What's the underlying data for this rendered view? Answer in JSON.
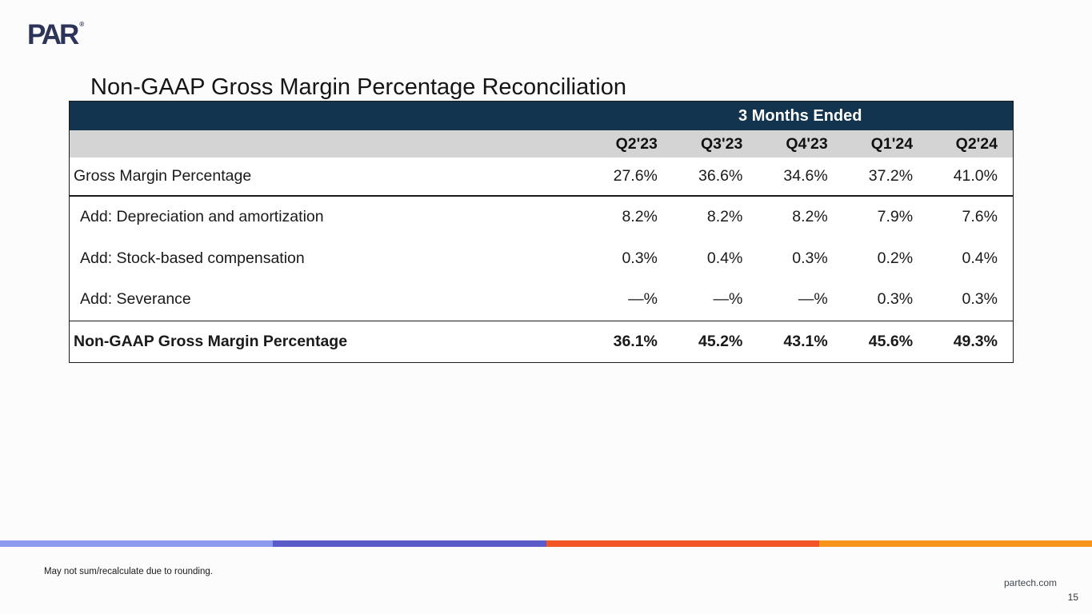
{
  "slide": {
    "logo_text": "PAR",
    "logo_registered": "®",
    "title": "Non-GAAP Gross Margin Percentage Reconciliation",
    "footnote": "May not sum/recalculate due to rounding.",
    "footer_link": "partech.com",
    "page_number": "15"
  },
  "table": {
    "group_header": "3 Months Ended",
    "columns": [
      "Q2'23",
      "Q3'23",
      "Q4'23",
      "Q1'24",
      "Q2'24"
    ],
    "rows": [
      {
        "label": "Gross Margin Percentage",
        "values": [
          "27.6%",
          "36.6%",
          "34.6%",
          "37.2%",
          "41.0%"
        ]
      },
      {
        "label": "Add: Depreciation and amortization",
        "values": [
          "8.2%",
          "8.2%",
          "8.2%",
          "7.9%",
          "7.6%"
        ]
      },
      {
        "label": "Add: Stock-based compensation",
        "values": [
          "0.3%",
          "0.4%",
          "0.3%",
          "0.2%",
          "0.4%"
        ]
      },
      {
        "label": "Add: Severance",
        "values": [
          "—%",
          "—%",
          "—%",
          "0.3%",
          "0.3%"
        ]
      },
      {
        "label": "Non-GAAP Gross Margin Percentage",
        "values": [
          "36.1%",
          "45.2%",
          "43.1%",
          "45.6%",
          "49.3%"
        ]
      }
    ]
  },
  "colors": {
    "header_navy": "#12344e",
    "header_gray": "#d4d4d4",
    "logo_navy": "#2c3459",
    "stripe": [
      "#8c9af0",
      "#5a5ac8",
      "#f25327",
      "#f7941d"
    ]
  }
}
